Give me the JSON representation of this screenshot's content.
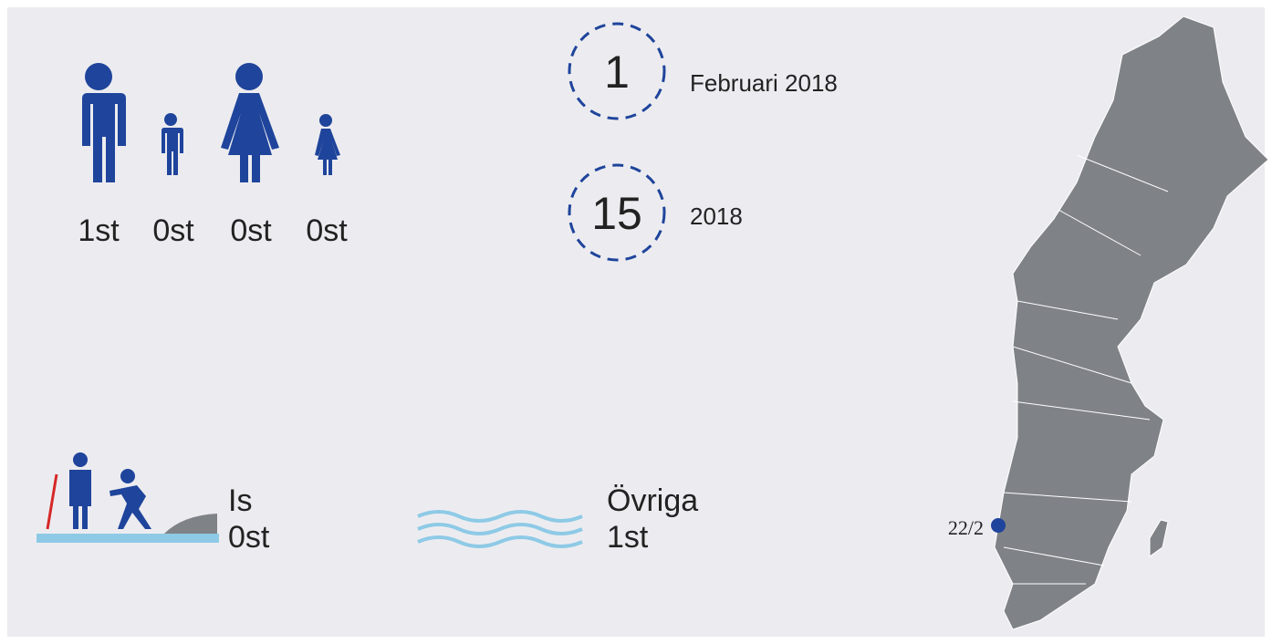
{
  "people": [
    {
      "label": "1st"
    },
    {
      "label": "0st"
    },
    {
      "label": "0st"
    },
    {
      "label": "0st"
    }
  ],
  "dates": [
    {
      "number": "1",
      "text": "Februari 2018"
    },
    {
      "number": "15",
      "text": "2018"
    }
  ],
  "categories": [
    {
      "name": "Is",
      "count": "0st"
    },
    {
      "name": "Övriga",
      "count": "1st"
    }
  ],
  "map": {
    "marker_label": "22/2"
  }
}
